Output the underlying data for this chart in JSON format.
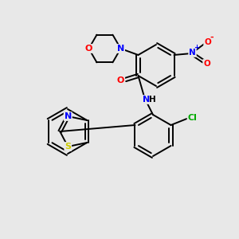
{
  "bg_color": "#e8e8e8",
  "bond_color": "#000000",
  "atom_colors": {
    "O": "#ff0000",
    "N": "#0000ff",
    "S": "#cccc00",
    "Cl": "#00aa00",
    "C": "#000000"
  },
  "lw": 1.4
}
